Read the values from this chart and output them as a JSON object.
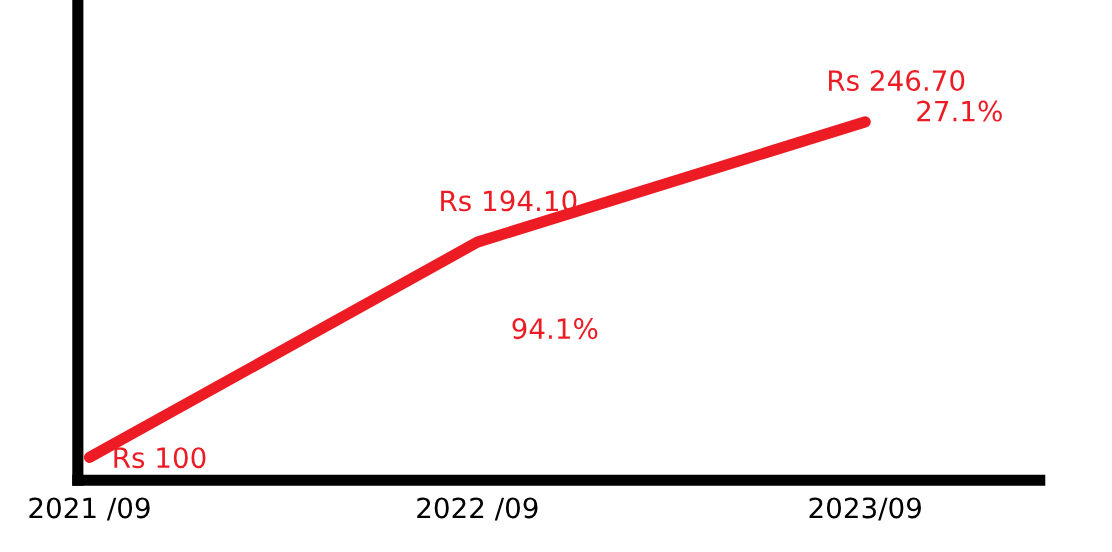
{
  "chart_data": {
    "type": "line",
    "categories": [
      "2021 /09",
      "2022 /09",
      "2023/09"
    ],
    "series": [
      {
        "color": "#ed1c24",
        "values": [
          100,
          194.1,
          246.7
        ],
        "value_labels": [
          "Rs 100",
          "Rs 194.10",
          "Rs 246.70"
        ]
      }
    ],
    "annotations": [
      "94.1%",
      "27.1%"
    ],
    "ylim": [
      90,
      300
    ],
    "tick_labels": "x",
    "grid": false,
    "legend": false,
    "marker": "none",
    "line_style": "solid"
  }
}
